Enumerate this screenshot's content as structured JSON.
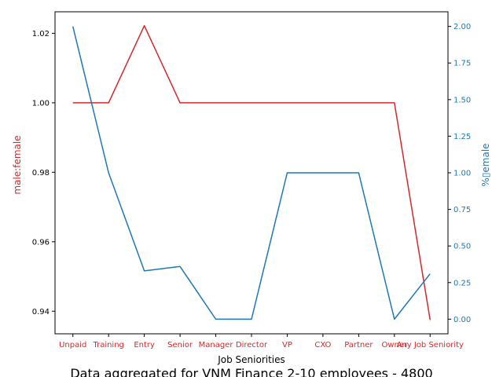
{
  "chart_data": {
    "type": "line",
    "caption": "Data aggregated for VNM Finance 2-10 employees - 4800",
    "xlabel": "Job Seniorities",
    "categories": [
      "Unpaid",
      "Training",
      "Entry",
      "Senior",
      "Manager",
      "Director",
      "VP",
      "CXO",
      "Partner",
      "Owner",
      "Any Job Seniority"
    ],
    "left_axis": {
      "label": "male:female",
      "color": "#d62728",
      "ylim": [
        0.9335,
        1.0262
      ],
      "ticks": [
        "0.94",
        "0.96",
        "0.98",
        "1.00",
        "1.02"
      ],
      "tick_values": [
        0.94,
        0.96,
        0.98,
        1.0,
        1.02
      ]
    },
    "right_axis": {
      "label": "%▯emale",
      "color": "#1f77b4",
      "ylim": [
        -0.1,
        2.1
      ],
      "ticks": [
        "0.00",
        "0.25",
        "0.50",
        "0.75",
        "1.00",
        "1.25",
        "1.50",
        "1.75",
        "2.00"
      ],
      "tick_values": [
        0,
        0.25,
        0.5,
        0.75,
        1.0,
        1.25,
        1.5,
        1.75,
        2.0
      ]
    },
    "series": [
      {
        "axis": "left",
        "color": "#d62728",
        "values": [
          1.0,
          1.0,
          1.0222,
          1.0,
          1.0,
          1.0,
          1.0,
          1.0,
          1.0,
          1.0,
          0.9375
        ]
      },
      {
        "axis": "right",
        "color": "#1f77b4",
        "values": [
          2.0,
          1.0,
          0.33,
          0.36,
          0.0,
          0.0,
          1.0,
          1.0,
          1.0,
          0.0,
          0.31
        ]
      }
    ]
  }
}
